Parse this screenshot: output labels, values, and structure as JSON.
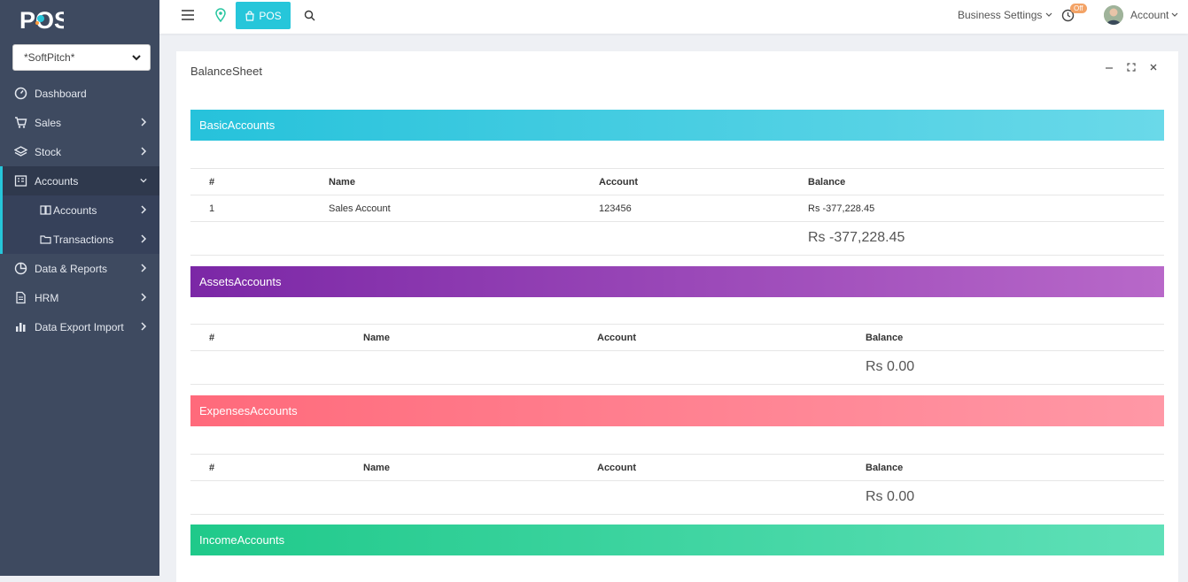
{
  "app": {
    "logo_text": "POS"
  },
  "sidebar": {
    "branch": "*SoftPitch*",
    "items": [
      {
        "label": "Dashboard"
      },
      {
        "label": "Sales"
      },
      {
        "label": "Stock"
      },
      {
        "label": "Accounts"
      },
      {
        "label": "Accounts"
      },
      {
        "label": "Transactions"
      },
      {
        "label": "Data & Reports"
      },
      {
        "label": "HRM"
      },
      {
        "label": "Data Export Import"
      }
    ]
  },
  "topbar": {
    "pos_label": "POS",
    "business_settings": "Business Settings",
    "off_badge": "Off",
    "account_label": "Account"
  },
  "page": {
    "title": "BalanceSheet",
    "sections": {
      "basic": {
        "title": "BasicAccounts",
        "headers": [
          "#",
          "Name",
          "Account",
          "Balance"
        ],
        "rows": [
          {
            "num": "1",
            "name": "Sales Account",
            "account": "123456",
            "balance": "Rs -377,228.45"
          }
        ],
        "total": "Rs -377,228.45"
      },
      "assets": {
        "title": "AssetsAccounts",
        "headers": [
          "#",
          "Name",
          "Account",
          "Balance"
        ],
        "total": "Rs 0.00"
      },
      "expenses": {
        "title": "ExpensesAccounts",
        "headers": [
          "#",
          "Name",
          "Account",
          "Balance"
        ],
        "total": "Rs 0.00"
      },
      "income": {
        "title": "IncomeAccounts"
      }
    }
  },
  "colors": {
    "sidebar_bg": "#3e4a60",
    "accent": "#26c6da",
    "assets": "#7b27a6",
    "expenses": "#ff6a7b",
    "income": "#1fc98a",
    "badge": "#f3a366"
  }
}
